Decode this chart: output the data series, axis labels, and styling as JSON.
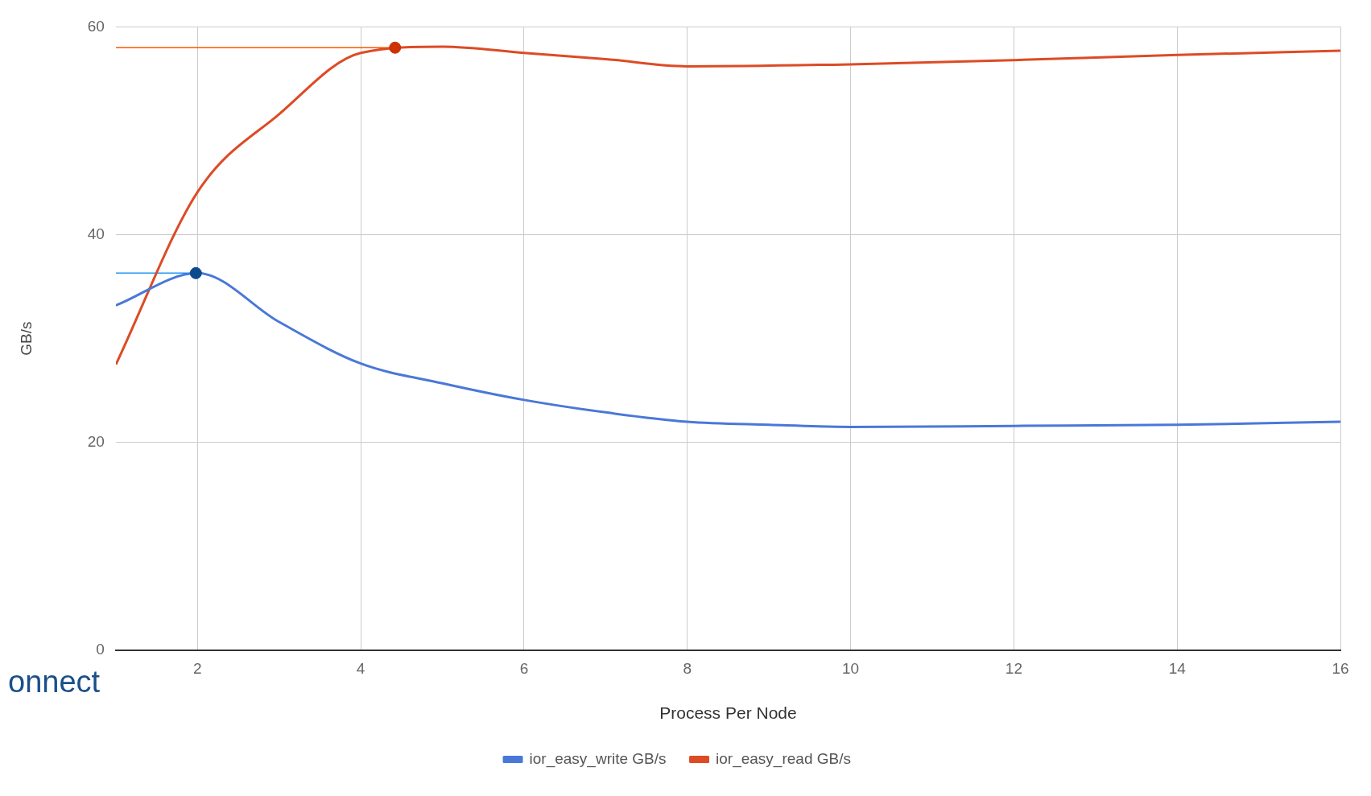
{
  "chart_data": {
    "type": "line",
    "xlabel": "Process Per Node",
    "ylabel": "GB/s",
    "xlim": [
      1,
      16
    ],
    "xticks": [
      2,
      4,
      6,
      8,
      10,
      12,
      14,
      16
    ],
    "ylim": [
      0,
      60
    ],
    "yticks": [
      0,
      20,
      40,
      60
    ],
    "grid": true,
    "legend": "bottom",
    "marker": "none",
    "series": [
      {
        "name": "ior_easy_write GB/s",
        "color": "#4a78d8",
        "x": [
          1,
          2,
          3,
          4,
          5,
          6,
          7,
          8,
          9,
          10,
          12,
          14,
          16
        ],
        "values": [
          33.2,
          36.3,
          31.6,
          27.6,
          25.7,
          24.1,
          22.9,
          22.0,
          21.7,
          21.5,
          21.6,
          21.7,
          22.0
        ]
      },
      {
        "name": "ior_easy_read GB/s",
        "color": "#dd4b25",
        "x": [
          1,
          2,
          3,
          4,
          5,
          6,
          7,
          8,
          10,
          12,
          14,
          16
        ],
        "values": [
          27.5,
          44.1,
          51.6,
          57.5,
          58.1,
          57.5,
          56.9,
          56.2,
          56.4,
          56.8,
          57.3,
          57.7
        ]
      },
      {
        "type": "line",
        "color": "#2196f3",
        "x": [
          1,
          1.98
        ],
        "values": [
          36.3,
          36.3
        ]
      },
      {
        "type": "line",
        "color": "#ff5500",
        "x": [
          1,
          4.42
        ],
        "values": [
          58.0,
          58.0
        ]
      },
      {
        "type": "scatter",
        "marker": "circle",
        "colors": [
          "#0d4a8c",
          "#cc3300"
        ],
        "x": [
          1.98,
          4.42
        ],
        "values": [
          36.3,
          58.0
        ]
      }
    ],
    "annotations": [
      "onnect"
    ]
  }
}
